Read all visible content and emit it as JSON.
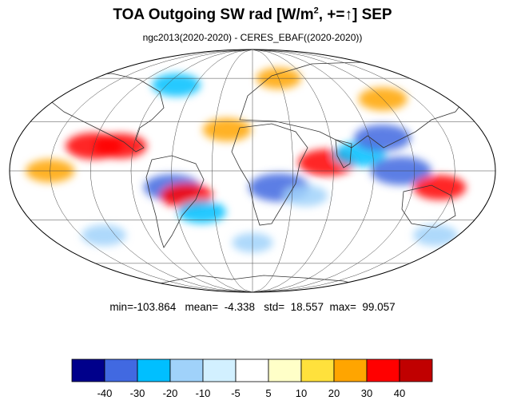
{
  "title": {
    "main": "TOA Outgoing SW rad [W/m",
    "sup": "2",
    "rest": ", +=↑] SEP"
  },
  "subtitle": "ngc2013(2020-2020) - CERES_EBAF((2020-2020))",
  "stats": {
    "min_label": "min=",
    "min": "-103.864",
    "mean_label": "mean=",
    "mean": "-4.338",
    "std_label": "std=",
    "std": "18.557",
    "max_label": "max=",
    "max": "99.057"
  },
  "chart_data": {
    "type": "heatmap",
    "projection": "mollweide",
    "colorbar": {
      "levels": [
        "-40",
        "-30",
        "-20",
        "-10",
        "-5",
        "5",
        "10",
        "20",
        "30",
        "40"
      ],
      "colors": [
        "#00008b",
        "#4169e1",
        "#00bfff",
        "#a0d2fa",
        "#d2f0ff",
        "#ffffff",
        "#ffffc8",
        "#ffe13c",
        "#ffa500",
        "#ff0000",
        "#c00000"
      ]
    },
    "anomaly_regions": [
      {
        "lon": -120,
        "lat": 15,
        "value": 35
      },
      {
        "lon": -100,
        "lat": 15,
        "value": 30
      },
      {
        "lon": -60,
        "lat": -10,
        "value": -35
      },
      {
        "lon": -50,
        "lat": -15,
        "value": 30
      },
      {
        "lon": -40,
        "lat": -25,
        "value": -25
      },
      {
        "lon": 20,
        "lat": -10,
        "value": -40
      },
      {
        "lon": 55,
        "lat": 5,
        "value": 35
      },
      {
        "lon": 40,
        "lat": -15,
        "value": -20
      },
      {
        "lon": 80,
        "lat": 10,
        "value": -30
      },
      {
        "lon": 110,
        "lat": 0,
        "value": -40
      },
      {
        "lon": 100,
        "lat": 20,
        "value": -35
      },
      {
        "lon": 140,
        "lat": -10,
        "value": 30
      },
      {
        "lon": -150,
        "lat": 0,
        "value": 25
      },
      {
        "lon": -20,
        "lat": 25,
        "value": 25
      },
      {
        "lon": 120,
        "lat": 45,
        "value": 25
      },
      {
        "lon": -80,
        "lat": 55,
        "value": -25
      },
      {
        "lon": 30,
        "lat": 60,
        "value": 20
      },
      {
        "lon": -130,
        "lat": -40,
        "value": -20
      },
      {
        "lon": 0,
        "lat": -45,
        "value": -15
      },
      {
        "lon": 160,
        "lat": -40,
        "value": -20
      }
    ]
  }
}
